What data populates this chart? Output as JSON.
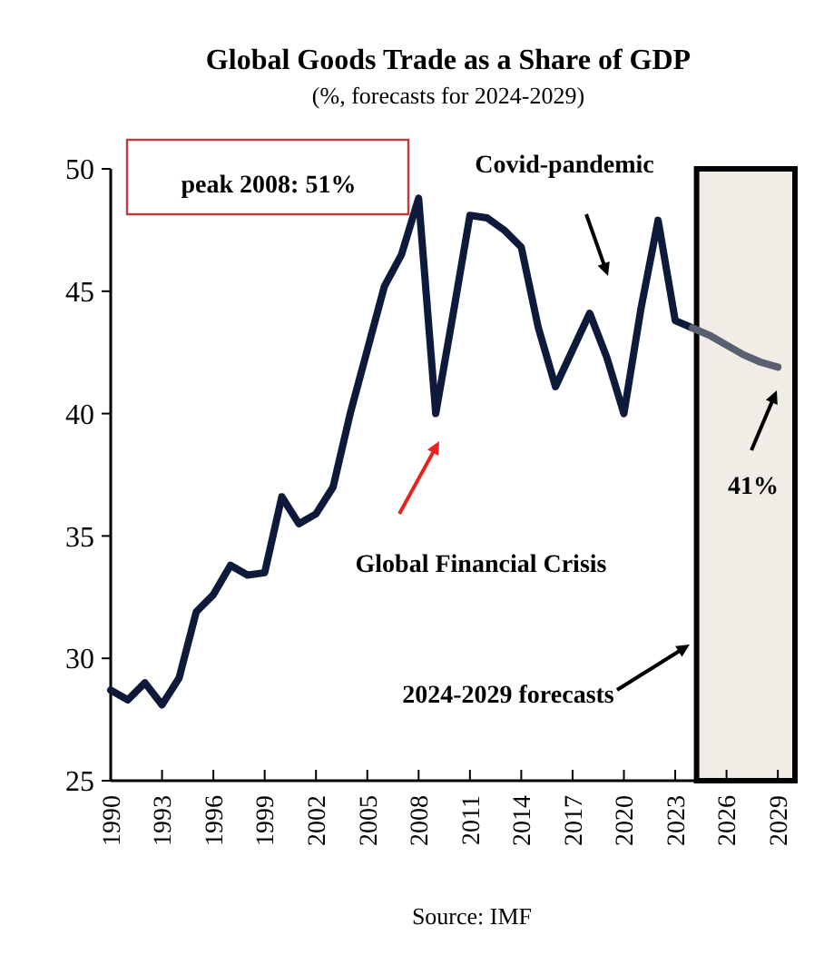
{
  "chart_data": {
    "type": "line",
    "title": "Global Goods Trade as a Share of GDP",
    "subtitle": "(%, forecasts for 2024-2029)",
    "series": [
      {
        "color": "#0d1a3a",
        "x": [
          1990,
          1991,
          1992,
          1993,
          1994,
          1995,
          1996,
          1997,
          1998,
          1999,
          2000,
          2001,
          2002,
          2003,
          2004,
          2005,
          2006,
          2007,
          2008,
          2009,
          2010,
          2011,
          2012,
          2013,
          2014,
          2015,
          2016,
          2017,
          2018,
          2019,
          2020,
          2021,
          2022,
          2023,
          2024
        ],
        "values": [
          28.7,
          28.3,
          29.0,
          28.1,
          29.2,
          31.9,
          32.6,
          33.8,
          33.4,
          33.5,
          36.6,
          35.5,
          35.9,
          37.0,
          40.0,
          42.6,
          45.2,
          46.5,
          48.8,
          40.0,
          44.0,
          48.1,
          48.0,
          47.5,
          46.8,
          43.5,
          41.1,
          42.6,
          44.1,
          42.3,
          40.0,
          44.3,
          47.9,
          43.8,
          43.5
        ]
      },
      {
        "color": "#5a6070",
        "x": [
          2024,
          2025,
          2026,
          2027,
          2028,
          2029
        ],
        "values": [
          43.5,
          43.2,
          42.8,
          42.4,
          42.1,
          41.9
        ]
      }
    ],
    "xlim": [
      1990,
      2030
    ],
    "xticks": [
      1990,
      1993,
      1996,
      1999,
      2002,
      2005,
      2008,
      2011,
      2014,
      2017,
      2020,
      2023,
      2026,
      2029
    ],
    "ylim": [
      25,
      50
    ],
    "yticks": [
      25,
      30,
      35,
      40,
      45,
      50
    ],
    "bands": [
      {
        "axis": "x",
        "from": 2024.25,
        "to": 2030,
        "color": "#efede6"
      }
    ],
    "line_style": "solid",
    "marker": "none",
    "grid": false,
    "annotations": [
      "peak 2008: 51%",
      "Covid-pandemic",
      "Global Financial Crisis",
      "2024-2029 forecasts",
      "41%",
      "Source: IMF"
    ]
  }
}
